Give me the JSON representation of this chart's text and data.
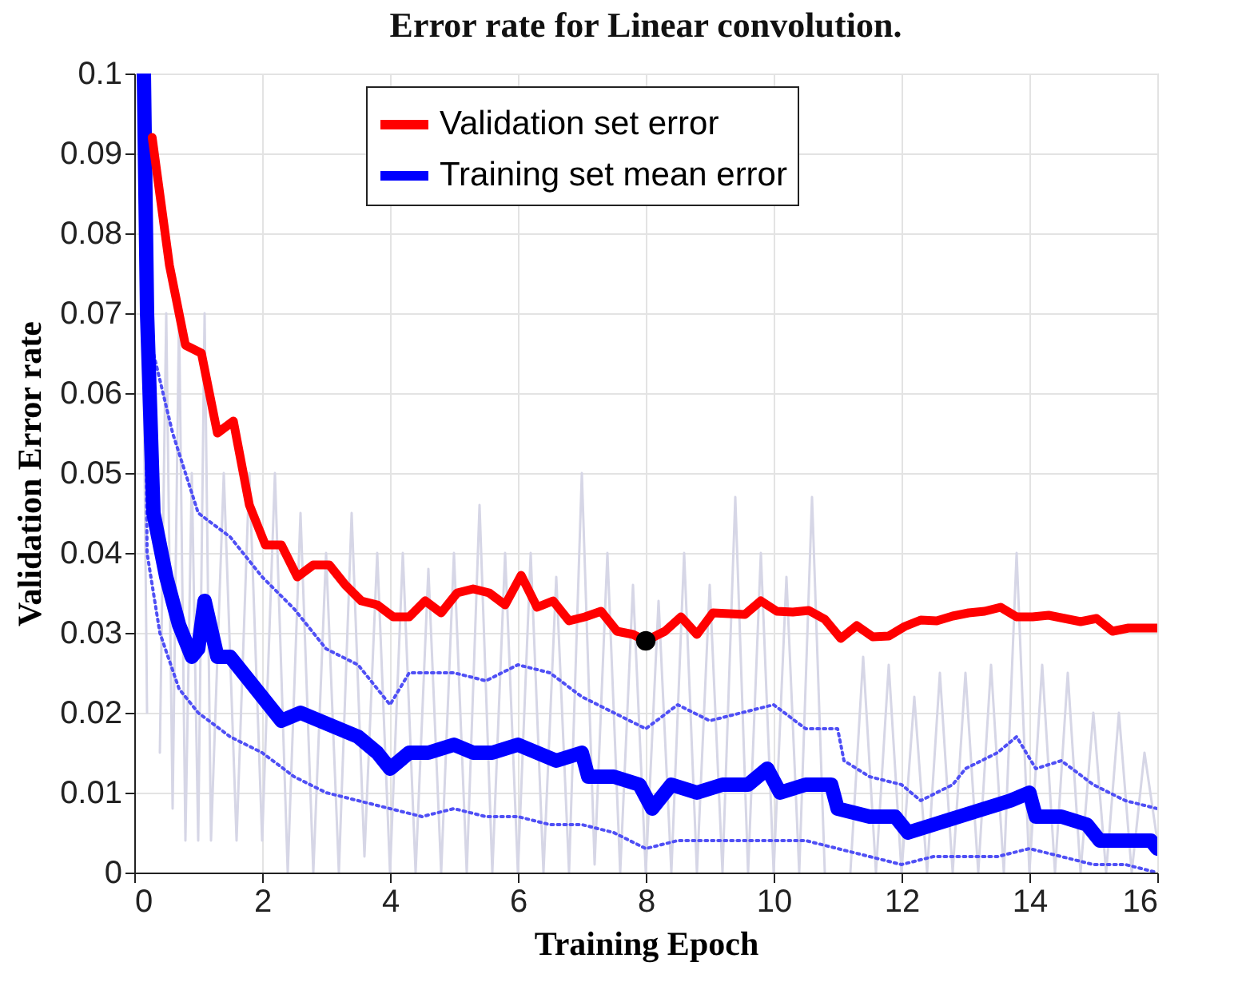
{
  "chart_data": {
    "type": "line",
    "title": "Error rate for Linear convolution.",
    "xlabel": "Training Epoch",
    "ylabel": "Validation Error rate",
    "xlim": [
      0,
      16
    ],
    "ylim": [
      0,
      0.1
    ],
    "xticks": [
      0,
      2,
      4,
      6,
      8,
      10,
      12,
      14,
      16
    ],
    "yticks": [
      0,
      0.01,
      0.02,
      0.03,
      0.04,
      0.05,
      0.06,
      0.07,
      0.08,
      0.09,
      0.1
    ],
    "grid": true,
    "legend": "top",
    "marker": "none",
    "series": [
      {
        "color": "#d6d6e6",
        "line_style": "solid",
        "x": [
          0.1,
          0.2,
          0.3,
          0.4,
          0.5,
          0.6,
          0.7,
          0.8,
          0.9,
          1.0,
          1.1,
          1.2,
          1.4,
          1.6,
          1.8,
          2.0,
          2.2,
          2.4,
          2.6,
          2.8,
          3.0,
          3.2,
          3.4,
          3.6,
          3.8,
          4.0,
          4.2,
          4.4,
          4.6,
          4.8,
          5.0,
          5.2,
          5.4,
          5.6,
          5.8,
          6.0,
          6.2,
          6.4,
          6.6,
          6.8,
          7.0,
          7.2,
          7.4,
          7.6,
          7.8,
          8.0,
          8.2,
          8.4,
          8.6,
          8.8,
          9.0,
          9.2,
          9.4,
          9.6,
          9.8,
          10.0,
          10.2,
          10.4,
          10.6,
          10.8,
          11.0,
          11.2,
          11.4,
          11.6,
          11.8,
          12.0,
          12.2,
          12.4,
          12.6,
          12.8,
          13.0,
          13.2,
          13.4,
          13.6,
          13.8,
          14.0,
          14.2,
          14.4,
          14.6,
          14.8,
          15.0,
          15.2,
          15.4,
          15.6,
          15.8,
          16.0
        ],
        "values": [
          0.1,
          0.02,
          null,
          0.015,
          0.07,
          0.008,
          0.07,
          0.004,
          0.05,
          0.004,
          0.07,
          0.004,
          0.05,
          0.004,
          0.05,
          0.004,
          0.05,
          0.0,
          0.045,
          0.0,
          0.04,
          0.0,
          0.045,
          0.002,
          0.04,
          0.0,
          0.04,
          0.0,
          0.038,
          0.0,
          0.04,
          0.0,
          0.046,
          0.0,
          0.04,
          0.0,
          0.04,
          0.0,
          0.037,
          0.0,
          0.05,
          0.001,
          0.04,
          0.0,
          0.036,
          0.0,
          0.034,
          0.0,
          0.04,
          0.0,
          0.036,
          0.0,
          0.047,
          0.0,
          0.04,
          0.0,
          0.037,
          0.0,
          0.047,
          0.0,
          null,
          0.0,
          0.027,
          0.0,
          0.026,
          0.0,
          0.022,
          0.0,
          0.025,
          0.0,
          0.025,
          0.0,
          0.026,
          0.0,
          0.04,
          0.0,
          0.026,
          0.0,
          0.025,
          0.0,
          0.02,
          0.0,
          0.02,
          0.0,
          0.015,
          0.004
        ]
      },
      {
        "color": "#4f4ff5",
        "line_style": "dotted",
        "x": [
          0.15,
          0.3,
          0.6,
          1.0,
          1.5,
          2.0,
          2.5,
          3.0,
          3.5,
          4.0,
          4.3,
          5.0,
          5.5,
          6.0,
          6.5,
          7.0,
          7.5,
          8.0,
          8.5,
          9.0,
          9.5,
          10.0,
          10.5,
          11.0,
          11.1,
          11.5,
          12.0,
          12.3,
          12.8,
          13.0,
          13.5,
          13.8,
          14.1,
          14.5,
          15.0,
          15.5,
          16.0
        ],
        "values": [
          0.1,
          0.065,
          0.055,
          0.045,
          0.042,
          0.037,
          0.033,
          0.028,
          0.026,
          0.021,
          0.025,
          0.025,
          0.024,
          0.026,
          0.025,
          0.022,
          0.02,
          0.018,
          0.021,
          0.019,
          0.02,
          0.021,
          0.018,
          0.018,
          0.014,
          0.012,
          0.011,
          0.009,
          0.011,
          0.013,
          0.015,
          0.017,
          0.013,
          0.014,
          0.011,
          0.009,
          0.008
        ]
      },
      {
        "color": "#4f4ff5",
        "line_style": "dotted",
        "x": [
          0.15,
          0.2,
          0.4,
          0.7,
          1.0,
          1.5,
          2.0,
          2.5,
          3.0,
          3.5,
          4.0,
          4.5,
          5.0,
          5.5,
          6.0,
          6.5,
          7.0,
          7.5,
          8.0,
          8.5,
          9.0,
          9.5,
          10.0,
          10.5,
          11.0,
          11.5,
          12.0,
          12.5,
          13.0,
          13.5,
          14.0,
          14.5,
          15.0,
          15.5,
          16.0
        ],
        "values": [
          0.09,
          0.04,
          0.03,
          0.023,
          0.02,
          0.017,
          0.015,
          0.012,
          0.01,
          0.009,
          0.008,
          0.007,
          0.008,
          0.007,
          0.007,
          0.006,
          0.006,
          0.005,
          0.003,
          0.004,
          0.004,
          0.004,
          0.004,
          0.004,
          0.003,
          0.002,
          0.001,
          0.002,
          0.002,
          0.002,
          0.003,
          0.002,
          0.001,
          0.001,
          0.0
        ]
      },
      {
        "name": "Training set mean error",
        "color": "#0000ff",
        "line_style": "solid",
        "x": [
          0.15,
          0.2,
          0.3,
          0.5,
          0.7,
          0.9,
          1.0,
          1.1,
          1.3,
          1.5,
          1.8,
          2.0,
          2.3,
          2.6,
          2.9,
          3.2,
          3.5,
          3.8,
          4.0,
          4.3,
          4.6,
          5.0,
          5.3,
          5.6,
          6.0,
          6.3,
          6.6,
          7.0,
          7.1,
          7.5,
          7.9,
          8.1,
          8.4,
          8.8,
          9.2,
          9.6,
          9.9,
          10.1,
          10.5,
          10.9,
          11.0,
          11.5,
          11.9,
          12.1,
          12.5,
          12.9,
          13.3,
          13.7,
          14.0,
          14.1,
          14.5,
          14.9,
          15.1,
          15.5,
          15.9,
          16.0
        ],
        "values": [
          0.1,
          0.07,
          0.045,
          0.037,
          0.031,
          0.027,
          0.028,
          0.034,
          0.027,
          0.027,
          0.024,
          0.022,
          0.019,
          0.02,
          0.019,
          0.018,
          0.017,
          0.015,
          0.013,
          0.015,
          0.015,
          0.016,
          0.015,
          0.015,
          0.016,
          0.015,
          0.014,
          0.015,
          0.012,
          0.012,
          0.011,
          0.008,
          0.011,
          0.01,
          0.011,
          0.011,
          0.013,
          0.01,
          0.011,
          0.011,
          0.008,
          0.007,
          0.007,
          0.005,
          0.006,
          0.007,
          0.008,
          0.009,
          0.01,
          0.007,
          0.007,
          0.006,
          0.004,
          0.004,
          0.004,
          0.003
        ]
      },
      {
        "name": "Validation set error",
        "color": "#ff0000",
        "line_style": "solid",
        "x": [
          0.28,
          0.55,
          0.8,
          1.05,
          1.3,
          1.55,
          1.8,
          2.05,
          2.3,
          2.55,
          2.8,
          3.05,
          3.3,
          3.55,
          3.8,
          4.05,
          4.3,
          4.55,
          4.8,
          5.05,
          5.3,
          5.55,
          5.8,
          6.05,
          6.3,
          6.55,
          6.8,
          7.05,
          7.3,
          7.55,
          7.8,
          8.0,
          8.3,
          8.55,
          8.8,
          9.05,
          9.3,
          9.55,
          9.8,
          10.05,
          10.3,
          10.55,
          10.8,
          11.05,
          11.3,
          11.55,
          11.8,
          12.05,
          12.3,
          12.55,
          12.8,
          13.05,
          13.3,
          13.55,
          13.8,
          14.05,
          14.3,
          14.55,
          14.8,
          15.05,
          15.3,
          15.55,
          16.0
        ],
        "values": [
          0.092,
          0.076,
          0.066,
          0.065,
          0.055,
          0.0565,
          0.046,
          0.041,
          0.041,
          0.037,
          0.0385,
          0.0385,
          0.036,
          0.034,
          0.0335,
          0.032,
          0.032,
          0.034,
          0.0325,
          0.035,
          0.0355,
          0.035,
          0.0335,
          0.0372,
          0.0332,
          0.034,
          0.0315,
          0.032,
          0.0327,
          0.0302,
          0.0298,
          0.029,
          0.0302,
          0.032,
          0.0298,
          0.0325,
          0.0324,
          0.0323,
          0.034,
          0.0327,
          0.0326,
          0.0328,
          0.0317,
          0.0293,
          0.0309,
          0.0295,
          0.0296,
          0.0308,
          0.0316,
          0.0315,
          0.0321,
          0.0325,
          0.0327,
          0.0332,
          0.032,
          0.032,
          0.0322,
          0.0318,
          0.0314,
          0.0318,
          0.0302,
          0.0306,
          0.0306
        ]
      },
      {
        "type": "scatter",
        "marker": "circle",
        "color": "#000000",
        "x": [
          8
        ],
        "values": [
          0.029
        ]
      }
    ]
  }
}
